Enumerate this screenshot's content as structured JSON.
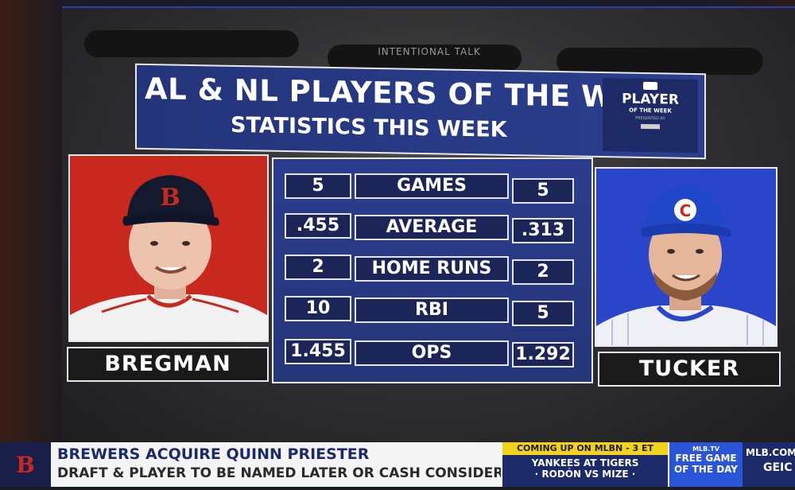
{
  "show_name": "INTENTIONAL TALK",
  "title": {
    "line1": "AL & NL PLAYERS OF THE WEEK",
    "line2": "STATISTICS THIS WEEK"
  },
  "badge": {
    "main": "PLAYER",
    "sub": "OF THE WEEK",
    "tiny": "PRESENTED BY"
  },
  "players": {
    "left": {
      "name": "BREGMAN",
      "cap_letter": "B",
      "bg": "#c8281e"
    },
    "right": {
      "name": "TUCKER",
      "cap_letter": "C",
      "bg": "#2a45c9"
    }
  },
  "stats": [
    {
      "left": "5",
      "label": "GAMES",
      "right": "5"
    },
    {
      "left": ".455",
      "label": "AVERAGE",
      "right": ".313"
    },
    {
      "left": "2",
      "label": "HOME RUNS",
      "right": "2"
    },
    {
      "left": "10",
      "label": "RBI",
      "right": "5"
    },
    {
      "left": "1.455",
      "label": "OPS",
      "right": "1.292"
    }
  ],
  "ticker": {
    "logo_letter": "B",
    "headline": "BREWERS ACQUIRE QUINN PRIESTER",
    "subline": "DRAFT & PLAYER TO BE NAMED LATER OR CASH CONSIDERAT",
    "coming_up": "COMING UP ON MLBN - 3 ET",
    "coming_line1": "YANKEES AT TIGERS",
    "coming_line2": "· RODÓN VS MIZE ·",
    "free_logo": "MLB.TV",
    "free_line1": "FREE GAME",
    "free_line2": "OF THE DAY",
    "site_line1": "MLB.COM/FR",
    "site_line2": "GEIC"
  },
  "colors": {
    "title_blue": "#2b3f8f",
    "red_sox_red": "#c8281e",
    "cubs_blue": "#2a45c9",
    "ticker_yellow": "#f2d21a"
  }
}
